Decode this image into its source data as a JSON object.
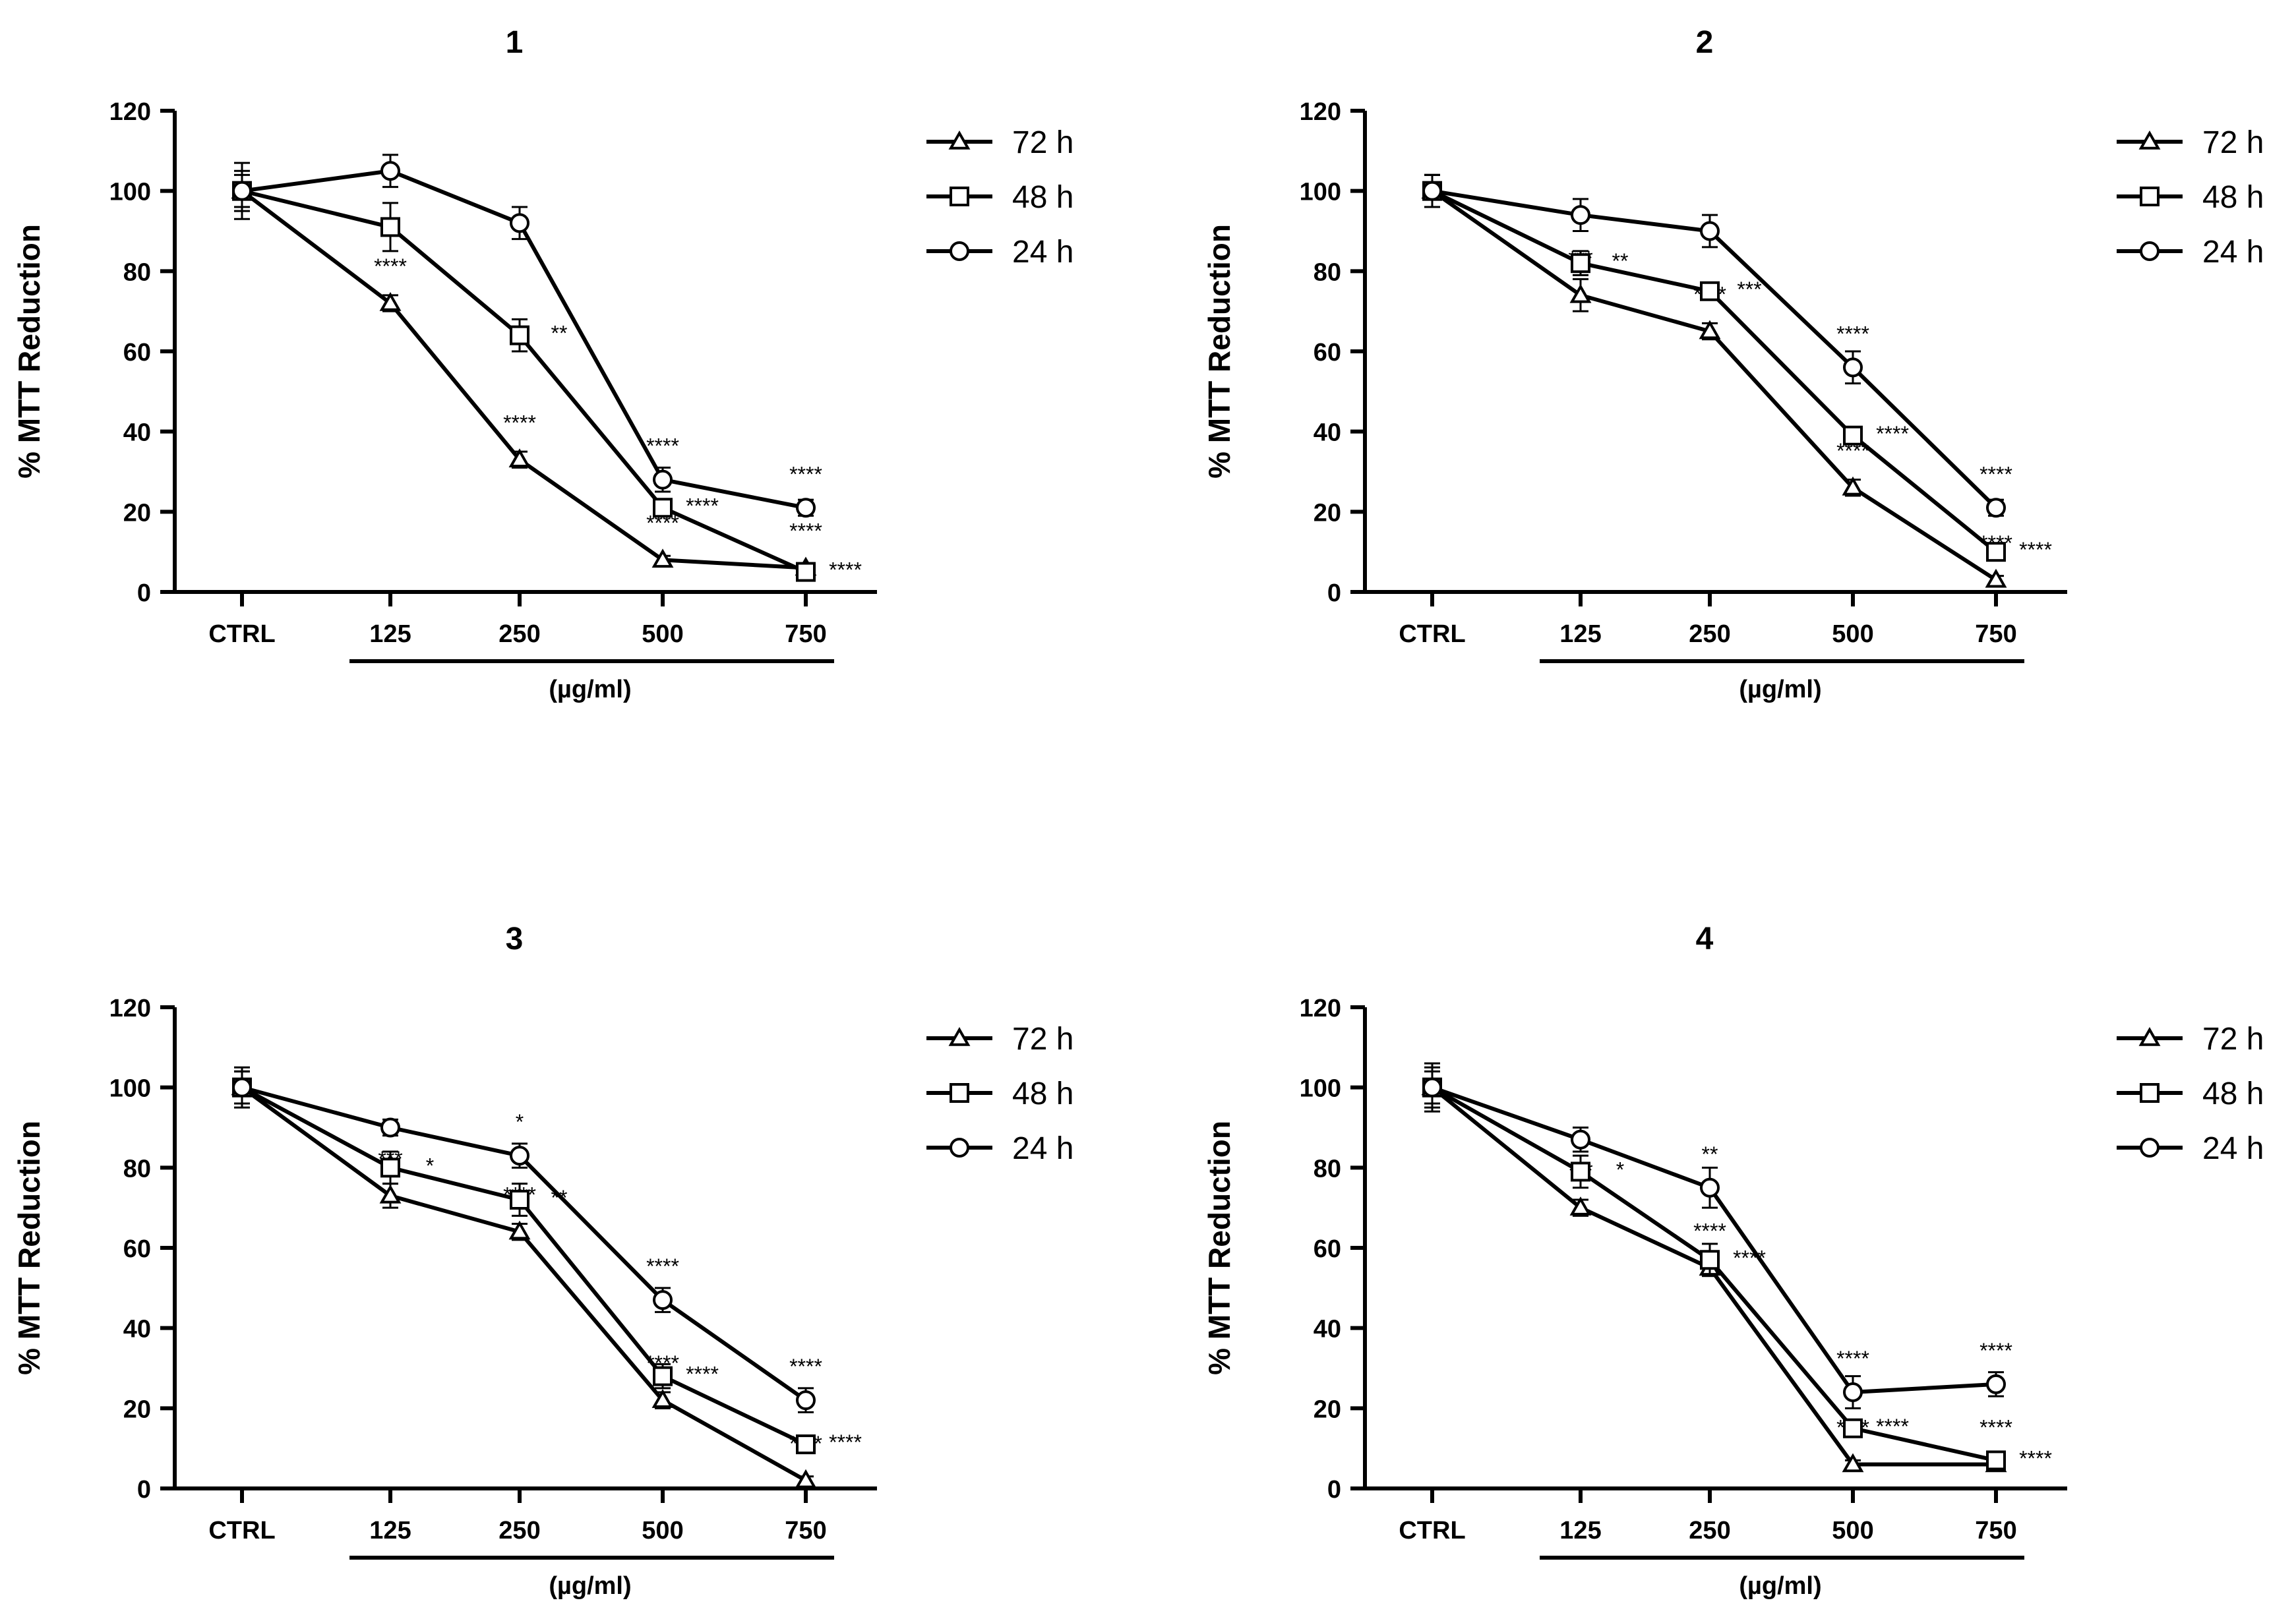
{
  "figure": {
    "ylabel": "% MTT Reduction",
    "unit_label": "(µg/ml)",
    "legend": [
      "72 h",
      "48 h",
      "24 h"
    ]
  },
  "chart_data": [
    {
      "type": "line",
      "title": "1",
      "categories": [
        "CTRL",
        "125",
        "250",
        "500",
        "750"
      ],
      "ylim": [
        0,
        120
      ],
      "yticks": [
        0,
        20,
        40,
        60,
        80,
        100,
        120
      ],
      "ylabel": "% MTT Reduction",
      "xlabel": "(µg/ml)",
      "series": [
        {
          "name": "72 h",
          "marker": "triangle",
          "values": [
            100,
            72,
            33,
            8,
            6
          ],
          "errors": [
            4,
            2,
            2,
            1,
            1
          ],
          "significance": [
            "",
            "****",
            "****",
            "****",
            "****"
          ]
        },
        {
          "name": "48 h",
          "marker": "square",
          "values": [
            100,
            91,
            64,
            21,
            5
          ],
          "errors": [
            5,
            6,
            4,
            2,
            1
          ],
          "significance": [
            "",
            "",
            "**",
            "****",
            "****"
          ]
        },
        {
          "name": "24 h",
          "marker": "circle",
          "values": [
            100,
            105,
            92,
            28,
            21
          ],
          "errors": [
            7,
            4,
            4,
            3,
            2
          ],
          "significance": [
            "",
            "",
            "",
            "****",
            "****"
          ]
        }
      ]
    },
    {
      "type": "line",
      "title": "2",
      "categories": [
        "CTRL",
        "125",
        "250",
        "500",
        "750"
      ],
      "ylim": [
        0,
        120
      ],
      "yticks": [
        0,
        20,
        40,
        60,
        80,
        100,
        120
      ],
      "ylabel": "% MTT Reduction",
      "xlabel": "(µg/ml)",
      "series": [
        {
          "name": "72 h",
          "marker": "triangle",
          "values": [
            100,
            74,
            65,
            26,
            3
          ],
          "errors": [
            4,
            4,
            2,
            2,
            1
          ],
          "significance": [
            "",
            "***",
            "****",
            "****",
            "****"
          ]
        },
        {
          "name": "48 h",
          "marker": "square",
          "values": [
            100,
            82,
            75,
            39,
            10
          ],
          "errors": [
            4,
            3,
            2,
            2,
            1
          ],
          "significance": [
            "",
            "**",
            "***",
            "****",
            "****"
          ]
        },
        {
          "name": "24 h",
          "marker": "circle",
          "values": [
            100,
            94,
            90,
            56,
            21
          ],
          "errors": [
            4,
            4,
            4,
            4,
            2
          ],
          "significance": [
            "",
            "",
            "",
            "****",
            "****"
          ]
        }
      ]
    },
    {
      "type": "line",
      "title": "3",
      "categories": [
        "CTRL",
        "125",
        "250",
        "500",
        "750"
      ],
      "ylim": [
        0,
        120
      ],
      "yticks": [
        0,
        20,
        40,
        60,
        80,
        100,
        120
      ],
      "ylabel": "% MTT Reduction",
      "xlabel": "(µg/ml)",
      "series": [
        {
          "name": "72 h",
          "marker": "triangle",
          "values": [
            100,
            73,
            64,
            22,
            2
          ],
          "errors": [
            4,
            3,
            2,
            2,
            1
          ],
          "significance": [
            "",
            "***",
            "****",
            "****",
            "****"
          ]
        },
        {
          "name": "48 h",
          "marker": "square",
          "values": [
            100,
            80,
            72,
            28,
            11
          ],
          "errors": [
            5,
            4,
            4,
            3,
            2
          ],
          "significance": [
            "",
            "*",
            "**",
            "****",
            "****"
          ]
        },
        {
          "name": "24 h",
          "marker": "circle",
          "values": [
            100,
            90,
            83,
            47,
            22
          ],
          "errors": [
            4,
            2,
            3,
            3,
            3
          ],
          "significance": [
            "",
            "",
            "*",
            "****",
            "****"
          ]
        }
      ]
    },
    {
      "type": "line",
      "title": "4",
      "categories": [
        "CTRL",
        "125",
        "250",
        "500",
        "750"
      ],
      "ylim": [
        0,
        120
      ],
      "yticks": [
        0,
        20,
        40,
        60,
        80,
        100,
        120
      ],
      "ylabel": "% MTT Reduction",
      "xlabel": "(µg/ml)",
      "series": [
        {
          "name": "72 h",
          "marker": "triangle",
          "values": [
            100,
            70,
            55,
            6,
            6
          ],
          "errors": [
            6,
            2,
            2,
            1,
            1
          ],
          "significance": [
            "",
            "***",
            "****",
            "****",
            "****"
          ]
        },
        {
          "name": "48 h",
          "marker": "square",
          "values": [
            100,
            79,
            57,
            15,
            7
          ],
          "errors": [
            5,
            4,
            4,
            2,
            1
          ],
          "significance": [
            "",
            "*",
            "****",
            "****",
            "****"
          ]
        },
        {
          "name": "24 h",
          "marker": "circle",
          "values": [
            100,
            87,
            75,
            24,
            26
          ],
          "errors": [
            4,
            3,
            5,
            4,
            3
          ],
          "significance": [
            "",
            "",
            "**",
            "****",
            "****"
          ]
        }
      ]
    }
  ]
}
